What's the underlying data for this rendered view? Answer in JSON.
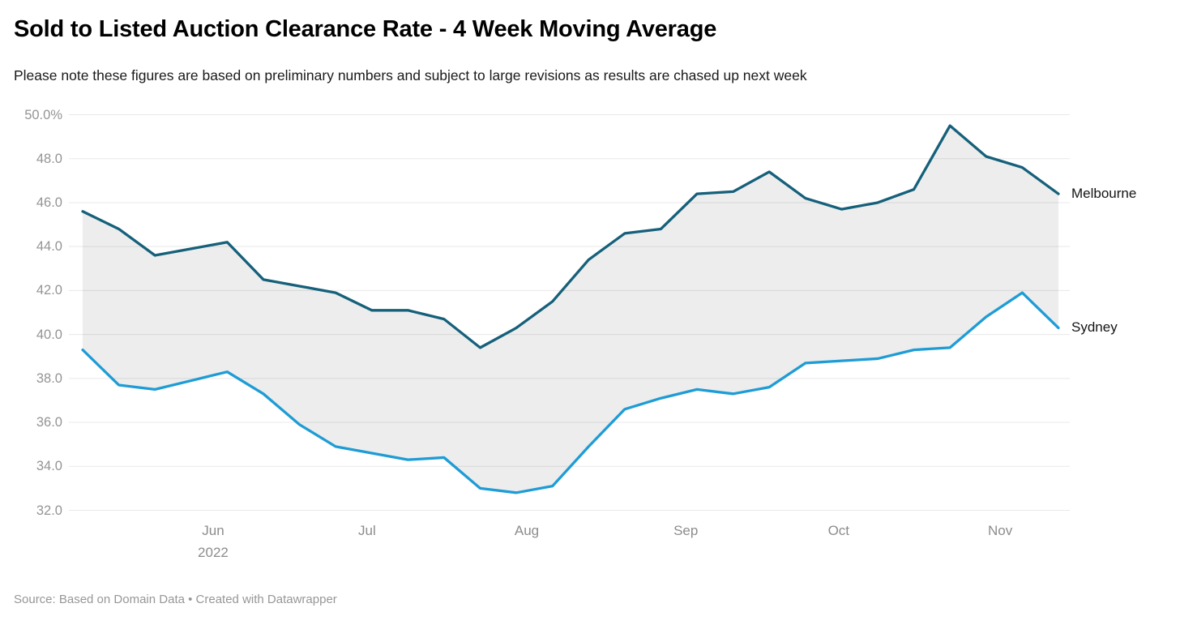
{
  "header": {
    "title": "Sold to Listed Auction Clearance Rate - 4 Week Moving Average",
    "subtitle": "Please note these figures are based on preliminary numbers and subject to large revisions as results are chased up next week"
  },
  "footer": {
    "source": "Source: Based on Domain Data • Created with Datawrapper"
  },
  "chart_data": {
    "type": "line",
    "unit": "percent",
    "frequency": "weekly",
    "title": "Sold to Listed Auction Clearance Rate - 4 Week Moving Average",
    "series": [
      {
        "name": "Melbourne",
        "color": "#15607a",
        "values": [
          45.6,
          44.8,
          43.6,
          43.9,
          44.2,
          42.5,
          42.2,
          41.9,
          41.1,
          41.1,
          40.7,
          39.4,
          40.3,
          41.5,
          43.4,
          44.6,
          44.8,
          46.4,
          46.5,
          47.4,
          46.2,
          45.7,
          46.0,
          46.6,
          49.5,
          48.1,
          47.6,
          46.4
        ]
      },
      {
        "name": "Sydney",
        "color": "#1e9cd6",
        "values": [
          39.3,
          37.7,
          37.5,
          37.9,
          38.3,
          37.3,
          35.9,
          34.9,
          34.6,
          34.3,
          34.4,
          33.0,
          32.8,
          33.1,
          34.9,
          36.6,
          37.1,
          37.5,
          37.3,
          37.6,
          38.7,
          38.8,
          38.9,
          39.3,
          39.4,
          40.8,
          41.9,
          40.3
        ]
      }
    ],
    "band_between_series": true,
    "colors": {
      "band_fill": "#ededed",
      "gridline": "rgba(0,0,0,0.09)"
    },
    "y_axis": {
      "range": [
        32,
        50
      ],
      "tick_values": [
        50,
        48,
        46,
        44,
        42,
        40,
        38,
        36,
        34,
        32
      ],
      "tick_labels": [
        "50.0%",
        "48.0",
        "46.0",
        "44.0",
        "42.0",
        "40.0",
        "38.0",
        "36.0",
        "34.0",
        "32.0"
      ],
      "grid": true
    },
    "x_axis": {
      "ticks": [
        {
          "label": "Jun",
          "sub": "2022",
          "week": 3.61
        },
        {
          "label": "Jul",
          "sub": "",
          "week": 7.87
        },
        {
          "label": "Aug",
          "sub": "",
          "week": 12.29
        },
        {
          "label": "Sep",
          "sub": "",
          "week": 16.69
        },
        {
          "label": "Oct",
          "sub": "",
          "week": 20.92
        },
        {
          "label": "Nov",
          "sub": "",
          "week": 25.39
        }
      ]
    },
    "legend_position": "direct-right-of-lines"
  }
}
